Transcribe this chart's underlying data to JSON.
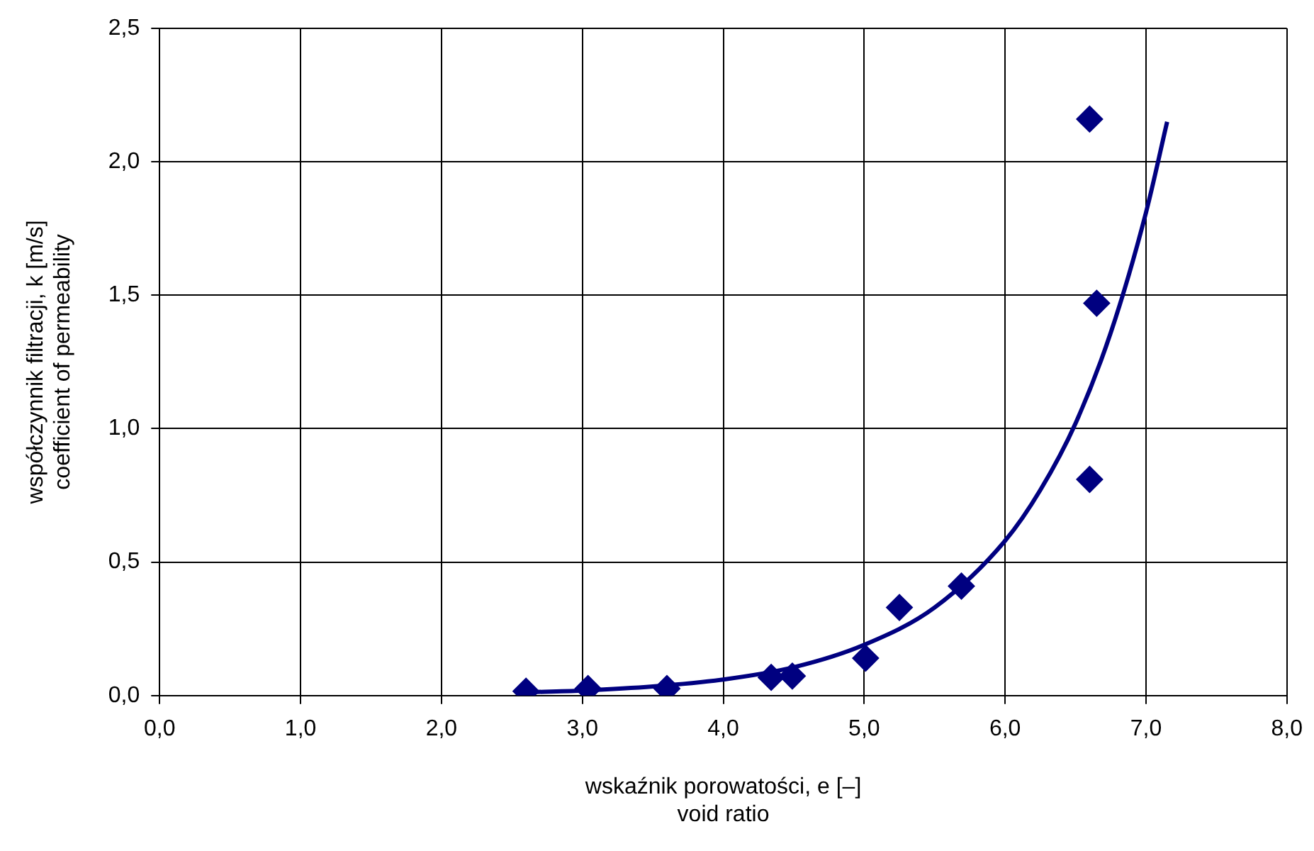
{
  "chart_data": {
    "type": "scatter",
    "xlabel": "wskaźnik porowatości, e [–]\nvoid ratio",
    "ylabel": "współczynnik filtracji, k [m/s]\ncoefficient of permeability",
    "xlim": [
      0,
      8
    ],
    "xticks": [
      {
        "value": 0,
        "label": "0,0"
      },
      {
        "value": 1,
        "label": "1,0"
      },
      {
        "value": 2,
        "label": "2,0"
      },
      {
        "value": 3,
        "label": "3,0"
      },
      {
        "value": 4,
        "label": "4,0"
      },
      {
        "value": 5,
        "label": "5,0"
      },
      {
        "value": 6,
        "label": "6,0"
      },
      {
        "value": 7,
        "label": "7,0"
      },
      {
        "value": 8,
        "label": "8,0"
      }
    ],
    "ylim": [
      0,
      2.5
    ],
    "yticks": [
      {
        "value": 0,
        "label": "0,0"
      },
      {
        "value": 0.5,
        "label": "0,5"
      },
      {
        "value": 1,
        "label": "1,0"
      },
      {
        "value": 1.5,
        "label": "1,5"
      },
      {
        "value": 2,
        "label": "2,0"
      },
      {
        "value": 2.5,
        "label": "2,5"
      }
    ],
    "grid": true,
    "legend": false,
    "marker": "diamond",
    "series": [
      {
        "color": "#000080",
        "x": [
          2.6,
          3.04,
          3.6,
          4.34,
          4.49,
          5.01,
          5.25,
          5.69,
          6.6,
          6.65,
          6.6
        ],
        "values": [
          0.016,
          0.026,
          0.026,
          0.068,
          0.073,
          0.14,
          0.33,
          0.41,
          2.16,
          1.47,
          0.81
        ]
      },
      {
        "type": "line",
        "color": "#000080",
        "marker": "none",
        "x": [
          2.6,
          3,
          3.5,
          4,
          4.5,
          5,
          5.5,
          6,
          6.25,
          6.5,
          6.75,
          7,
          7.15
        ],
        "values": [
          0.012,
          0.019,
          0.034,
          0.06,
          0.106,
          0.19,
          0.33,
          0.58,
          0.77,
          1.02,
          1.36,
          1.81,
          2.15
        ]
      }
    ]
  }
}
